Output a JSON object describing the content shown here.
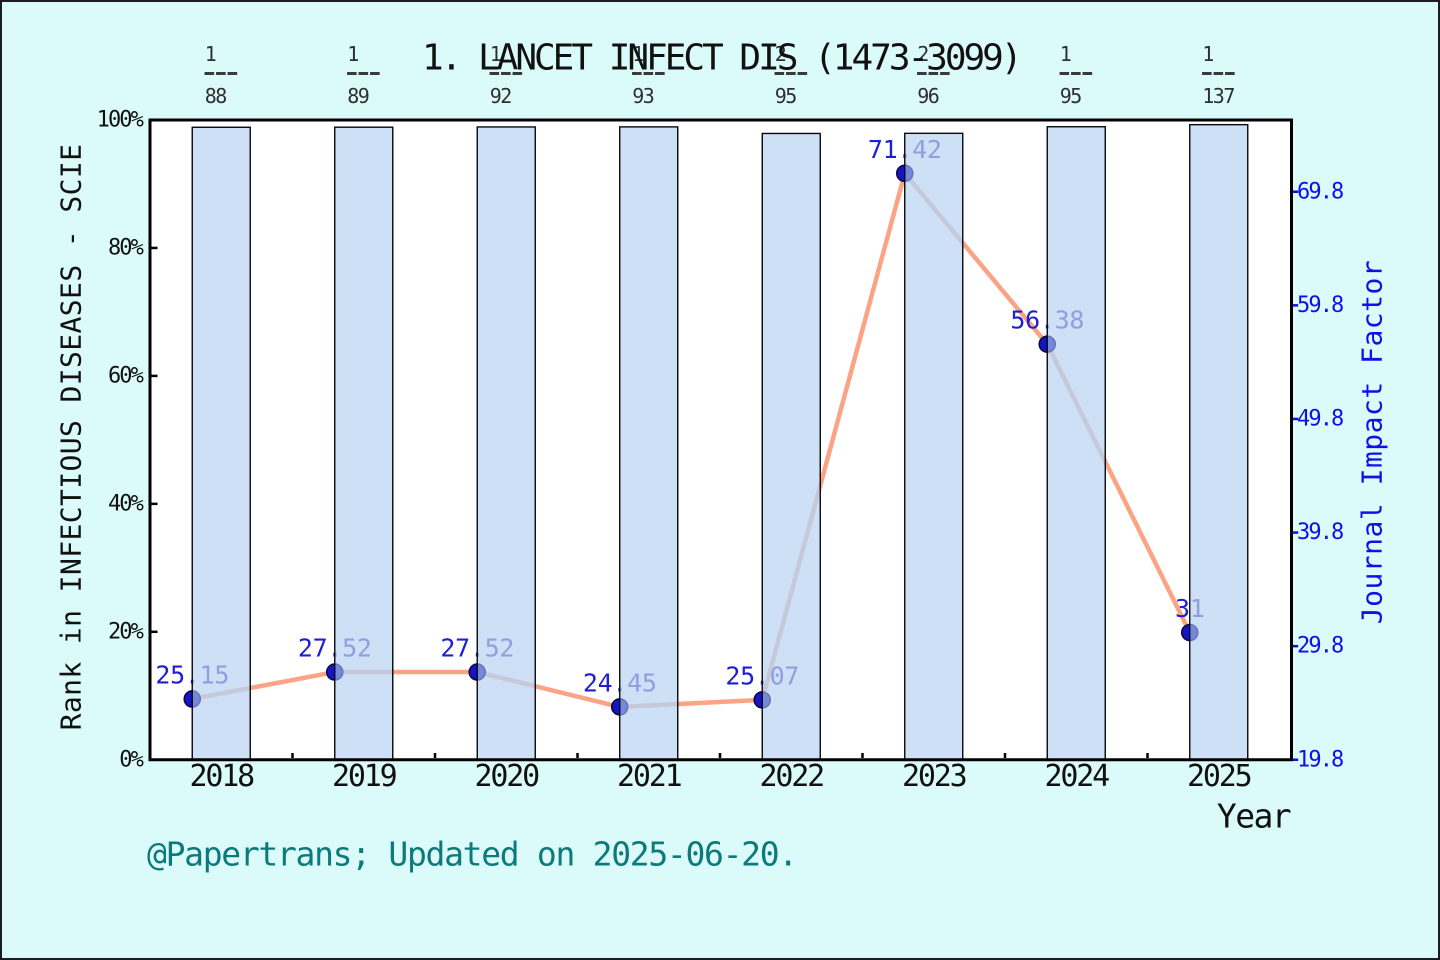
{
  "figure": {
    "title": "1. LANCET INFECT DIS (1473-3099)",
    "left_axis": {
      "label": "Rank in INFECTIOUS DISEASES - SCIE",
      "tick_labels": [
        "0%",
        "20%",
        "40%",
        "60%",
        "80%",
        "100%"
      ]
    },
    "right_axis": {
      "label": "Journal Impact Factor",
      "tick_labels": [
        "19.8",
        "29.8",
        "39.8",
        "49.8",
        "59.8",
        "69.8"
      ]
    },
    "x_axis": {
      "label": "Year",
      "tick_labels": [
        "2018",
        "2019",
        "2020",
        "2021",
        "2022",
        "2023",
        "2024",
        "2025"
      ]
    },
    "annotation": "@Papertrans; Updated on 2025-06-20."
  },
  "chart_data": {
    "type": "bar+line",
    "title": "1. LANCET INFECT DIS (1473-3099)",
    "xlabel": "Year",
    "ylabel_left": "Rank in INFECTIOUS DISEASES - SCIE",
    "ylabel_right": "Journal Impact Factor",
    "x": [
      2018,
      2019,
      2020,
      2021,
      2022,
      2023,
      2024,
      2025
    ],
    "xlim": [
      2017.5,
      2025.5
    ],
    "ylim_left_percent": [
      0,
      100
    ],
    "ylim_right": [
      19.8,
      76.1
    ],
    "right_ticks": [
      19.8,
      29.8,
      39.8,
      49.8,
      59.8,
      69.8
    ],
    "left_ticks_percent": [
      0,
      20,
      40,
      60,
      80,
      100
    ],
    "series": [
      {
        "name": "Rank in category (bar, percentile)",
        "type": "bar",
        "rank_fractions": [
          {
            "numerator": "1",
            "denominator": "88"
          },
          {
            "numerator": "1",
            "denominator": "89"
          },
          {
            "numerator": "1",
            "denominator": "92"
          },
          {
            "numerator": "1",
            "denominator": "93"
          },
          {
            "numerator": "2",
            "denominator": "95"
          },
          {
            "numerator": "2",
            "denominator": "96"
          },
          {
            "numerator": "1",
            "denominator": "95"
          },
          {
            "numerator": "1",
            "denominator": "137"
          }
        ],
        "values_percent": [
          98.864,
          98.876,
          98.913,
          98.925,
          97.895,
          97.917,
          98.947,
          99.27
        ]
      },
      {
        "name": "Journal Impact Factor (line)",
        "type": "line",
        "values": [
          25.15,
          27.52,
          27.52,
          24.45,
          25.07,
          71.42,
          56.38,
          31
        ],
        "point_labels": [
          "25.15",
          "27.52",
          "27.52",
          "24.45",
          "25.07",
          "71.42",
          "56.38",
          "31"
        ]
      }
    ],
    "colors": {
      "background": "#DBFAFA",
      "outer_border": "#1B1B2B",
      "plot_background": "#FFFFFF",
      "spine": "#000000",
      "bar_fill": "#CDE0F5",
      "bar_edge": "#08080F",
      "line": "#FBA485",
      "line_muted_under_bar": "#C6C9DA",
      "point_fill": "#1414C8",
      "point_edge": "#0A0A3C",
      "point_fill_muted": "#7488DC",
      "point_edge_muted": "#6D76B4",
      "point_label": "#1F1FD0",
      "point_label_muted": "#8F9FE0",
      "fraction_text": "#2F2F2F",
      "axis_text": "#111111",
      "right_axis_text": "#1010E6",
      "annotation_text": "#0C7A7A"
    }
  }
}
